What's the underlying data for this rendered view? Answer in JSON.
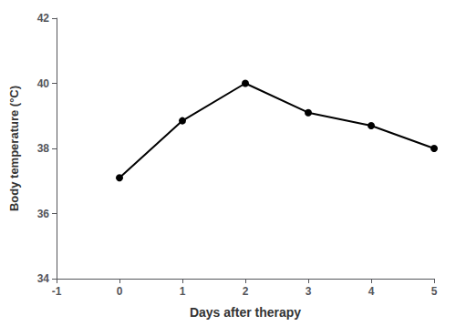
{
  "chart_data": {
    "type": "line",
    "x": [
      0,
      1,
      2,
      3,
      4,
      5
    ],
    "values": [
      37.1,
      38.85,
      40.0,
      39.1,
      38.7,
      38.0
    ],
    "xlabel": "Days after therapy",
    "ylabel": "Body temperature (°C)",
    "xlim": [
      -1,
      5
    ],
    "ylim": [
      34,
      42
    ],
    "xticks": [
      -1,
      0,
      1,
      2,
      3,
      4,
      5
    ],
    "yticks": [
      34,
      36,
      38,
      40,
      42
    ],
    "color": "#000000",
    "marker": "circle",
    "grid": false
  }
}
